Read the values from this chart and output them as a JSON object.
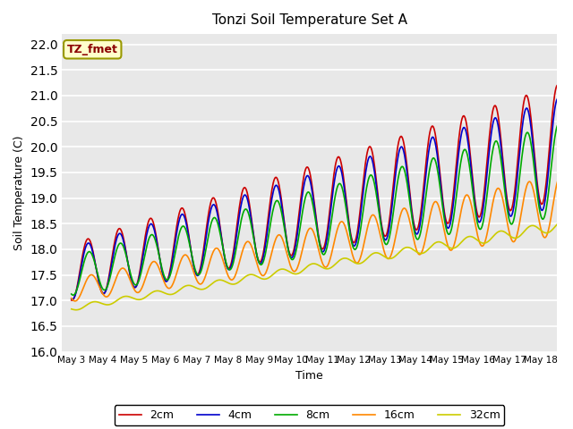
{
  "title": "Tonzi Soil Temperature Set A",
  "xlabel": "Time",
  "ylabel": "Soil Temperature (C)",
  "ylim": [
    16.0,
    22.2
  ],
  "yticks": [
    16.0,
    16.5,
    17.0,
    17.5,
    18.0,
    18.5,
    19.0,
    19.5,
    20.0,
    20.5,
    21.0,
    21.5,
    22.0
  ],
  "x_tick_labels": [
    "May 3",
    "May 4",
    "May 5",
    "May 6",
    "May 7",
    "May 8",
    "May 9",
    "May 10",
    "May 11",
    "May 12",
    "May 13",
    "May 14",
    "May 15",
    "May 16",
    "May 17",
    "May 18"
  ],
  "colors": {
    "2cm": "#cc0000",
    "4cm": "#0000cc",
    "8cm": "#00aa00",
    "16cm": "#ff8800",
    "32cm": "#cccc00"
  },
  "legend_label": "TZ_fmet",
  "bg_color": "#e8e8e8",
  "axes_bg": "#e8e8e8",
  "trend_2cm": [
    17.55,
    20.15
  ],
  "trend_4cm": [
    17.52,
    19.95
  ],
  "trend_8cm": [
    17.48,
    19.6
  ],
  "trend_16cm": [
    17.2,
    18.9
  ],
  "trend_32cm": [
    16.85,
    18.5
  ],
  "amp_2cm": [
    0.55,
    1.15
  ],
  "amp_4cm": [
    0.5,
    1.08
  ],
  "amp_8cm": [
    0.38,
    0.92
  ],
  "amp_16cm": [
    0.22,
    0.6
  ],
  "amp_32cm": [
    0.05,
    0.1
  ],
  "days": 16,
  "n_per_day": 48
}
